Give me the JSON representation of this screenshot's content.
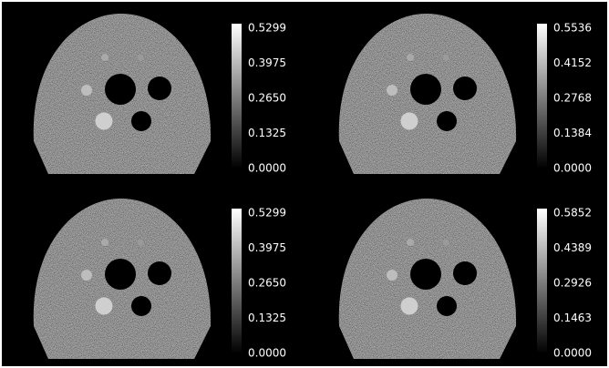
{
  "panels": [
    {
      "colorbar_ticks": [
        "0.5299",
        "0.3975",
        "0.2650",
        "0.1325",
        "0.0000"
      ]
    },
    {
      "colorbar_ticks": [
        "0.5536",
        "0.4152",
        "0.2768",
        "0.1384",
        "0.0000"
      ]
    },
    {
      "colorbar_ticks": [
        "0.5299",
        "0.3975",
        "0.2650",
        "0.1325",
        "0.0000"
      ]
    },
    {
      "colorbar_ticks": [
        "0.5852",
        "0.4389",
        "0.2926",
        "0.1463",
        "0.0000"
      ]
    }
  ]
}
